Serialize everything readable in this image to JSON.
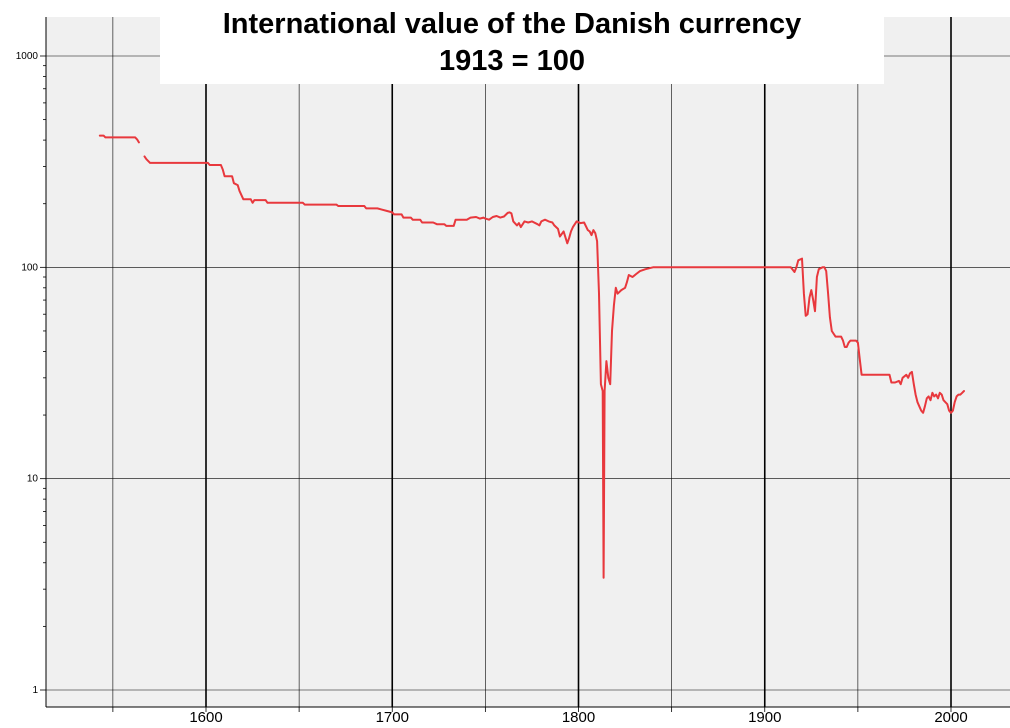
{
  "chart_data": {
    "type": "line",
    "title": "International value of the Danish currency",
    "subtitle": "1913 = 100",
    "xlabel": "",
    "ylabel": "",
    "y_scale": "log",
    "xlim": [
      1510,
      2010
    ],
    "ylim": [
      0.92,
      1200
    ],
    "grid": true,
    "x_major_ticks": [
      1600,
      1700,
      1800,
      1900,
      2000
    ],
    "x_minor_ticks": [
      1550,
      1650,
      1750,
      1850,
      1950
    ],
    "x_tick_labels": [
      "1600",
      "1700",
      "1800",
      "1900",
      "2000"
    ],
    "y_ticks": [
      1,
      10,
      100,
      1000
    ],
    "y_tick_labels": [
      "1",
      "10",
      "100",
      "1000"
    ],
    "colors": {
      "line": "#e8383d",
      "background": "#f0f0f0",
      "grid": "#000000"
    },
    "series": [
      {
        "segments": [
          [
            [
              1543,
              420
            ],
            [
              1545,
              420
            ],
            [
              1546,
              412
            ],
            [
              1555,
              412
            ],
            [
              1562,
              412
            ],
            [
              1563,
              403
            ],
            [
              1564,
              390
            ]
          ],
          [
            [
              1567,
              335
            ],
            [
              1568,
              325
            ],
            [
              1570,
              312
            ],
            [
              1580,
              312
            ],
            [
              1590,
              312
            ],
            [
              1598,
              312
            ],
            [
              1601,
              312
            ],
            [
              1602,
              305
            ],
            [
              1608,
              305
            ],
            [
              1609,
              290
            ],
            [
              1610,
              270
            ],
            [
              1614,
              270
            ],
            [
              1615,
              250
            ],
            [
              1617,
              245
            ],
            [
              1618,
              230
            ],
            [
              1620,
              210
            ],
            [
              1624,
              210
            ],
            [
              1625,
              202
            ],
            [
              1626,
              208
            ],
            [
              1632,
              208
            ],
            [
              1633,
              202
            ],
            [
              1645,
              202
            ],
            [
              1652,
              202
            ],
            [
              1653,
              198
            ],
            [
              1670,
              198
            ],
            [
              1671,
              195
            ],
            [
              1685,
              195
            ],
            [
              1686,
              190
            ],
            [
              1692,
              190
            ],
            [
              1697,
              185
            ],
            [
              1700,
              182
            ],
            [
              1701,
              178
            ],
            [
              1705,
              178
            ],
            [
              1706,
              172
            ],
            [
              1710,
              172
            ],
            [
              1711,
              168
            ],
            [
              1715,
              168
            ],
            [
              1716,
              163
            ],
            [
              1722,
              163
            ],
            [
              1724,
              160
            ],
            [
              1728,
              160
            ],
            [
              1729,
              157
            ],
            [
              1733,
              157
            ],
            [
              1734,
              168
            ],
            [
              1740,
              168
            ],
            [
              1742,
              172
            ],
            [
              1745,
              173
            ],
            [
              1747,
              170
            ],
            [
              1749,
              172
            ],
            [
              1750,
              170
            ],
            [
              1752,
              168
            ],
            [
              1754,
              173
            ],
            [
              1756,
              175
            ],
            [
              1758,
              172
            ],
            [
              1760,
              174
            ],
            [
              1762,
              181
            ],
            [
              1763,
              182
            ],
            [
              1764,
              180
            ],
            [
              1765,
              165
            ],
            [
              1767,
              158
            ],
            [
              1768,
              162
            ],
            [
              1769,
              155
            ],
            [
              1771,
              165
            ],
            [
              1773,
              163
            ],
            [
              1775,
              165
            ],
            [
              1778,
              160
            ],
            [
              1779,
              158
            ],
            [
              1780,
              165
            ],
            [
              1782,
              168
            ],
            [
              1784,
              165
            ],
            [
              1786,
              163
            ],
            [
              1787,
              158
            ],
            [
              1789,
              152
            ],
            [
              1790,
              140
            ],
            [
              1792,
              148
            ],
            [
              1794,
              130
            ],
            [
              1795,
              138
            ],
            [
              1796,
              148
            ],
            [
              1797,
              155
            ],
            [
              1799,
              165
            ],
            [
              1801,
              162
            ],
            [
              1803,
              163
            ],
            [
              1805,
              150
            ],
            [
              1806,
              148
            ],
            [
              1807,
              142
            ],
            [
              1808,
              150
            ],
            [
              1809,
              145
            ],
            [
              1810,
              133
            ],
            [
              1811,
              75
            ],
            [
              1812,
              28
            ],
            [
              1813,
              26
            ],
            [
              1813.5,
              3.4
            ],
            [
              1814,
              26
            ],
            [
              1815,
              36
            ],
            [
              1816,
              30
            ],
            [
              1817,
              28
            ],
            [
              1818,
              50
            ],
            [
              1819,
              66
            ],
            [
              1820,
              80
            ],
            [
              1821,
              75
            ],
            [
              1823,
              78
            ],
            [
              1825,
              80
            ],
            [
              1826,
              85
            ],
            [
              1827,
              92
            ],
            [
              1829,
              90
            ],
            [
              1831,
              93
            ],
            [
              1833,
              96
            ],
            [
              1836,
              98
            ],
            [
              1840,
              100
            ],
            [
              1850,
              100
            ],
            [
              1870,
              100
            ],
            [
              1890,
              100
            ],
            [
              1912,
              100
            ],
            [
              1914,
              100
            ],
            [
              1916,
              95
            ],
            [
              1917,
              100
            ],
            [
              1918,
              108
            ],
            [
              1920,
              110
            ],
            [
              1921,
              75
            ],
            [
              1922,
              59
            ],
            [
              1923,
              60
            ],
            [
              1924,
              72
            ],
            [
              1925,
              78
            ],
            [
              1926,
              70
            ],
            [
              1927,
              62
            ],
            [
              1928,
              90
            ],
            [
              1929,
              98
            ],
            [
              1931,
              100
            ],
            [
              1932,
              100
            ],
            [
              1933,
              96
            ],
            [
              1934,
              75
            ],
            [
              1935,
              58
            ],
            [
              1936,
              50
            ],
            [
              1938,
              47
            ],
            [
              1941,
              47
            ],
            [
              1942,
              45
            ],
            [
              1943,
              42
            ],
            [
              1944,
              42
            ],
            [
              1945,
              44
            ],
            [
              1946,
              45
            ],
            [
              1949,
              45
            ],
            [
              1950,
              44
            ],
            [
              1951,
              37
            ],
            [
              1952,
              31
            ],
            [
              1955,
              31
            ],
            [
              1960,
              31
            ],
            [
              1965,
              31
            ],
            [
              1967,
              31
            ],
            [
              1968,
              28.5
            ],
            [
              1970,
              28.5
            ],
            [
              1972,
              29
            ],
            [
              1973,
              28
            ],
            [
              1974,
              30
            ],
            [
              1976,
              31
            ],
            [
              1977,
              30
            ],
            [
              1978,
              31.5
            ],
            [
              1979,
              32
            ],
            [
              1980,
              28
            ],
            [
              1981,
              25
            ],
            [
              1982,
              23
            ],
            [
              1983,
              22
            ],
            [
              1984,
              21
            ],
            [
              1985,
              20.5
            ],
            [
              1986,
              22
            ],
            [
              1987,
              24
            ],
            [
              1988,
              24.5
            ],
            [
              1989,
              23.5
            ],
            [
              1990,
              25.5
            ],
            [
              1991,
              24.5
            ],
            [
              1992,
              25
            ],
            [
              1993,
              24
            ],
            [
              1994,
              25.5
            ],
            [
              1995,
              25
            ],
            [
              1996,
              23.5
            ],
            [
              1997,
              23
            ],
            [
              1998,
              22.5
            ],
            [
              1999,
              21
            ],
            [
              2000,
              20.5
            ],
            [
              2001,
              21
            ],
            [
              2002,
              23
            ],
            [
              2003,
              24.5
            ],
            [
              2004,
              25
            ],
            [
              2005,
              25
            ],
            [
              2006,
              25.5
            ],
            [
              2007,
              26
            ]
          ]
        ]
      }
    ]
  }
}
